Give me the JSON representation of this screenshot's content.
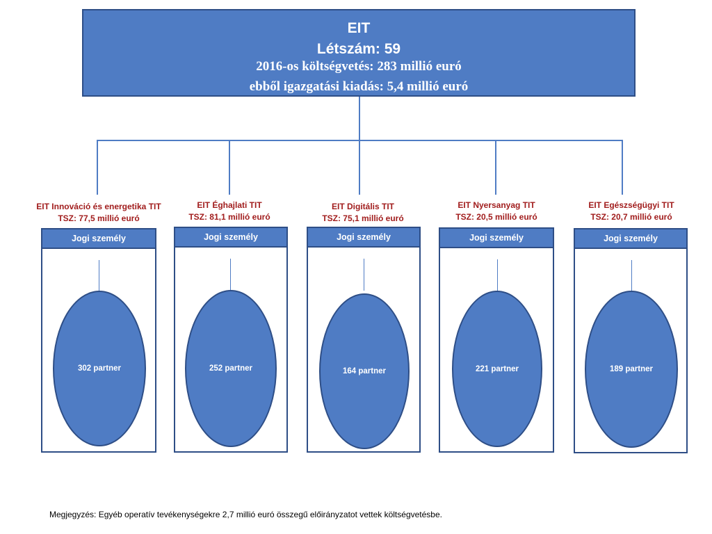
{
  "top": {
    "title": "EIT",
    "staff": "Létszám: 59",
    "budget": "2016-os költségvetés: 283 millió euró",
    "admin": "ebből igazgatási kiadás: 5,4 millió euró"
  },
  "kics": [
    {
      "name": "EIT Innováció és energetika TIT",
      "tsz": "TSZ: 77,5 millió euró",
      "header": "Jogi személy",
      "partners": "302 partner"
    },
    {
      "name": "EIT Éghajlati TIT",
      "tsz": "TSZ: 81,1 millió euró",
      "header": "Jogi személy",
      "partners": "252 partner"
    },
    {
      "name": "EIT Digitális TIT",
      "tsz": "TSZ: 75,1 millió euró",
      "header": "Jogi személy",
      "partners": "164 partner"
    },
    {
      "name": "EIT Nyersanyag TIT",
      "tsz": "TSZ: 20,5 millió euró",
      "header": "Jogi személy",
      "partners": "221 partner"
    },
    {
      "name": "EIT Egészségügyi TIT",
      "tsz": "TSZ: 20,7 millió euró",
      "header": "Jogi személy",
      "partners": "189 partner"
    }
  ],
  "note": "Megjegyzés: Egyéb operatív tevékenységekre 2,7 millió euró összegű előirányzatot vettek költségvetésbe."
}
